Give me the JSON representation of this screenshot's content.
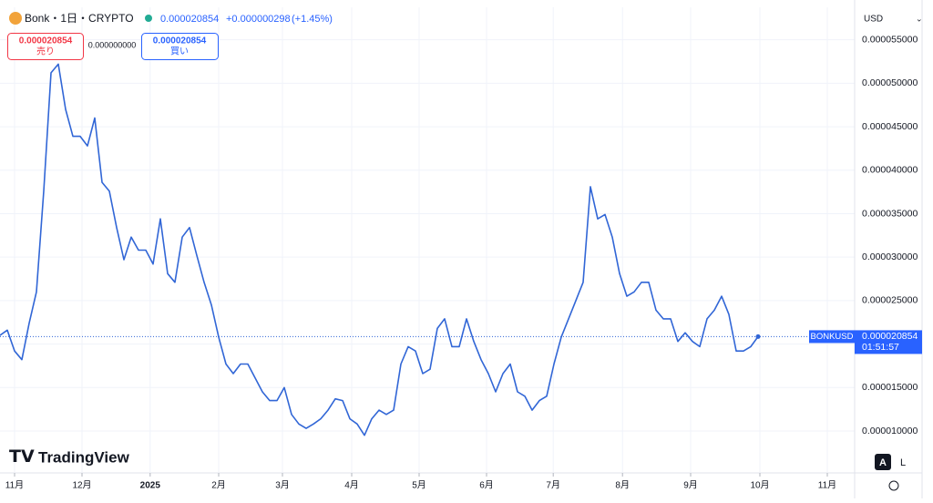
{
  "header": {
    "symbol": "Bonk・1日・CRYPTO",
    "change": "+0.000000298",
    "change_pct": "(+1.45%)",
    "currency": "USD"
  },
  "trade": {
    "sell": "売り",
    "spread": "0.000000000",
    "buy": "買い"
  },
  "countdown": "01:51:57",
  "brand": "TradingView",
  "buttons": [
    "A",
    "L"
  ],
  "chart_data": {
    "type": "line",
    "color": "#3166d6",
    "grid": true,
    "series": [
      {
        "name": "BONKUSD",
        "color": "#3166d6",
        "values": [
          2.1e-05,
          2.16e-05,
          1.92e-05,
          1.82e-05,
          2.24e-05,
          2.6e-05,
          3.76e-05,
          5.12e-05,
          5.22e-05,
          4.7e-05,
          4.39e-05,
          4.39e-05,
          4.28e-05,
          4.6e-05,
          3.86e-05,
          3.76e-05,
          3.34e-05,
          2.97e-05,
          3.23e-05,
          3.08e-05,
          3.08e-05,
          2.92e-05,
          3.44e-05,
          2.81e-05,
          2.71e-05,
          3.23e-05,
          3.34e-05,
          3.02e-05,
          2.71e-05,
          2.45e-05,
          2.08e-05,
          1.77e-05,
          1.66e-05,
          1.77e-05,
          1.77e-05,
          1.61e-05,
          1.45e-05,
          1.35e-05,
          1.35e-05,
          1.5e-05,
          1.19e-05,
          1.08e-05,
          1.03e-05,
          1.08e-05,
          1.14e-05,
          1.24e-05,
          1.37e-05,
          1.35e-05,
          1.14e-05,
          1.08e-05,
          9.5e-06,
          1.14e-05,
          1.24e-05,
          1.19e-05,
          1.24e-05,
          1.77e-05,
          1.97e-05,
          1.92e-05,
          1.66e-05,
          1.71e-05,
          2.18e-05,
          2.29e-05,
          1.97e-05,
          1.97e-05,
          2.29e-05,
          2.03e-05,
          1.82e-05,
          1.66e-05,
          1.45e-05,
          1.66e-05,
          1.77e-05,
          1.45e-05,
          1.4e-05,
          1.24e-05,
          1.35e-05,
          1.4e-05,
          1.77e-05,
          2.08e-05,
          2.29e-05,
          2.5e-05,
          2.71e-05,
          3.81e-05,
          3.44e-05,
          3.49e-05,
          3.23e-05,
          2.81e-05,
          2.55e-05,
          2.6e-05,
          2.71e-05,
          2.71e-05,
          2.39e-05,
          2.29e-05,
          2.29e-05,
          2.03e-05,
          2.13e-05,
          2.03e-05,
          1.97e-05,
          2.29e-05,
          2.39e-05,
          2.55e-05,
          2.34e-05,
          1.92e-05,
          1.92e-05,
          1.97e-05,
          2.0854e-05
        ]
      }
    ],
    "xlim": [
      0,
      117.25
    ],
    "xticks": [
      {
        "value": 2,
        "label": "11月"
      },
      {
        "value": 11.25,
        "label": "12月"
      },
      {
        "value": 20.6,
        "label": "2025"
      },
      {
        "value": 30,
        "label": "2月"
      },
      {
        "value": 38.75,
        "label": "3月"
      },
      {
        "value": 48.25,
        "label": "4月"
      },
      {
        "value": 57.5,
        "label": "5月"
      },
      {
        "value": 66.75,
        "label": "6月"
      },
      {
        "value": 75.9,
        "label": "7月"
      },
      {
        "value": 85.4,
        "label": "8月"
      },
      {
        "value": 94.75,
        "label": "9月"
      },
      {
        "value": 104.25,
        "label": "10月"
      },
      {
        "value": 113.5,
        "label": "11月"
      }
    ],
    "ylim": [
      5.28e-06,
      5.874e-05
    ],
    "yticks": [
      {
        "value": 1e-05,
        "label": "0.000010000"
      },
      {
        "value": 1.5e-05,
        "label": "0.000015000"
      },
      {
        "value": 2e-05,
        "label": "0.000020000"
      },
      {
        "value": 2.5e-05,
        "label": "0.000025000"
      },
      {
        "value": 3e-05,
        "label": "0.000030000"
      },
      {
        "value": 3.5e-05,
        "label": "0.000035000"
      },
      {
        "value": 4e-05,
        "label": "0.000040000"
      },
      {
        "value": 4.5e-05,
        "label": "0.000045000"
      },
      {
        "value": 5e-05,
        "label": "0.000050000"
      },
      {
        "value": 5.5e-05,
        "label": "0.000055000"
      }
    ]
  }
}
